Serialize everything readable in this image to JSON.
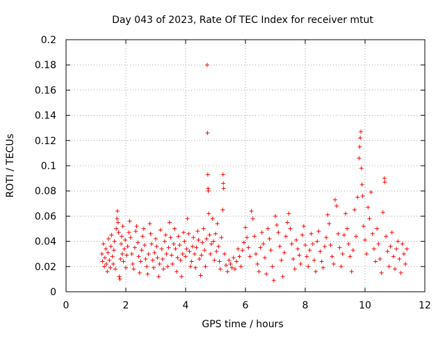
{
  "chart_data": {
    "type": "scatter",
    "title": "Day 043 of 2023, Rate Of TEC Index for receiver mtut",
    "xlabel": "GPS time / hours",
    "ylabel": "ROTI / TECUs",
    "xlim": [
      0,
      12
    ],
    "ylim": [
      0,
      0.2
    ],
    "x_ticks": [
      "0",
      "2",
      "4",
      "6",
      "8",
      "10",
      "12"
    ],
    "y_ticks": [
      "0",
      "0.02",
      "0.04",
      "0.06",
      "0.08",
      "0.1",
      "0.12",
      "0.14",
      "0.16",
      "0.18",
      "0.2"
    ],
    "grid": true,
    "marker": "+",
    "color": "#ff0000",
    "series": [
      {
        "points": [
          [
            1.2,
            0.03
          ],
          [
            1.22,
            0.024
          ],
          [
            1.25,
            0.038
          ],
          [
            1.28,
            0.02
          ],
          [
            1.3,
            0.027
          ],
          [
            1.33,
            0.034
          ],
          [
            1.35,
            0.022
          ],
          [
            1.38,
            0.016
          ],
          [
            1.4,
            0.031
          ],
          [
            1.42,
            0.042
          ],
          [
            1.45,
            0.025
          ],
          [
            1.48,
            0.019
          ],
          [
            1.5,
            0.036
          ],
          [
            1.52,
            0.045
          ],
          [
            1.55,
            0.028
          ],
          [
            1.58,
            0.022
          ],
          [
            1.6,
            0.033
          ],
          [
            1.62,
            0.04
          ],
          [
            1.65,
            0.018
          ],
          [
            1.68,
            0.05
          ],
          [
            1.7,
            0.058
          ],
          [
            1.72,
            0.064
          ],
          [
            1.74,
            0.055
          ],
          [
            1.76,
            0.047
          ],
          [
            1.78,
            0.012
          ],
          [
            1.8,
            0.01
          ],
          [
            1.82,
            0.026
          ],
          [
            1.84,
            0.038
          ],
          [
            1.86,
            0.044
          ],
          [
            1.88,
            0.03
          ],
          [
            1.9,
            0.052
          ],
          [
            1.92,
            0.024
          ],
          [
            1.95,
            0.034
          ],
          [
            1.98,
            0.041
          ],
          [
            2.0,
            0.019
          ],
          [
            2.03,
            0.029
          ],
          [
            2.06,
            0.036
          ],
          [
            2.1,
            0.047
          ],
          [
            2.13,
            0.056
          ],
          [
            2.16,
            0.043
          ],
          [
            2.2,
            0.03
          ],
          [
            2.23,
            0.022
          ],
          [
            2.26,
            0.018
          ],
          [
            2.3,
            0.035
          ],
          [
            2.33,
            0.048
          ],
          [
            2.36,
            0.052
          ],
          [
            2.4,
            0.039
          ],
          [
            2.43,
            0.028
          ],
          [
            2.46,
            0.015
          ],
          [
            2.5,
            0.024
          ],
          [
            2.53,
            0.033
          ],
          [
            2.56,
            0.044
          ],
          [
            2.6,
            0.05
          ],
          [
            2.63,
            0.037
          ],
          [
            2.66,
            0.026
          ],
          [
            2.7,
            0.02
          ],
          [
            2.73,
            0.014
          ],
          [
            2.76,
            0.03
          ],
          [
            2.8,
            0.054
          ],
          [
            2.83,
            0.046
          ],
          [
            2.86,
            0.038
          ],
          [
            2.9,
            0.025
          ],
          [
            2.93,
            0.019
          ],
          [
            2.96,
            0.031
          ],
          [
            3.0,
            0.042
          ],
          [
            3.03,
            0.036
          ],
          [
            3.06,
            0.027
          ],
          [
            3.1,
            0.012
          ],
          [
            3.13,
            0.022
          ],
          [
            3.16,
            0.049
          ],
          [
            3.2,
            0.034
          ],
          [
            3.23,
            0.026
          ],
          [
            3.26,
            0.018
          ],
          [
            3.3,
            0.04
          ],
          [
            3.33,
            0.045
          ],
          [
            3.36,
            0.03
          ],
          [
            3.4,
            0.02
          ],
          [
            3.43,
            0.035
          ],
          [
            3.46,
            0.055
          ],
          [
            3.5,
            0.043
          ],
          [
            3.53,
            0.029
          ],
          [
            3.56,
            0.022
          ],
          [
            3.6,
            0.038
          ],
          [
            3.63,
            0.05
          ],
          [
            3.66,
            0.034
          ],
          [
            3.7,
            0.016
          ],
          [
            3.73,
            0.027
          ],
          [
            3.76,
            0.044
          ],
          [
            3.8,
            0.037
          ],
          [
            3.83,
            0.025
          ],
          [
            3.86,
            0.012
          ],
          [
            3.9,
            0.03
          ],
          [
            3.93,
            0.047
          ],
          [
            3.96,
            0.04
          ],
          [
            4.0,
            0.028
          ],
          [
            4.03,
            0.034
          ],
          [
            4.06,
            0.058
          ],
          [
            4.1,
            0.046
          ],
          [
            4.13,
            0.032
          ],
          [
            4.16,
            0.02
          ],
          [
            4.2,
            0.024
          ],
          [
            4.23,
            0.036
          ],
          [
            4.26,
            0.043
          ],
          [
            4.3,
            0.03
          ],
          [
            4.33,
            0.019
          ],
          [
            4.36,
            0.035
          ],
          [
            4.4,
            0.048
          ],
          [
            4.43,
            0.041
          ],
          [
            4.46,
            0.026
          ],
          [
            4.5,
            0.013
          ],
          [
            4.53,
            0.029
          ],
          [
            4.56,
            0.039
          ],
          [
            4.6,
            0.05
          ],
          [
            4.63,
            0.033
          ],
          [
            4.66,
            0.02
          ],
          [
            4.7,
            0.042
          ],
          [
            4.72,
            0.18
          ],
          [
            4.73,
            0.126
          ],
          [
            4.74,
            0.093
          ],
          [
            4.75,
            0.082
          ],
          [
            4.76,
            0.08
          ],
          [
            4.77,
            0.062
          ],
          [
            4.8,
            0.045
          ],
          [
            4.83,
            0.03
          ],
          [
            4.86,
            0.038
          ],
          [
            4.9,
            0.058
          ],
          [
            4.93,
            0.04
          ],
          [
            4.96,
            0.025
          ],
          [
            5.0,
            0.046
          ],
          [
            5.03,
            0.032
          ],
          [
            5.06,
            0.054
          ],
          [
            5.1,
            0.036
          ],
          [
            5.13,
            0.024
          ],
          [
            5.16,
            0.018
          ],
          [
            5.2,
            0.043
          ],
          [
            5.24,
            0.065
          ],
          [
            5.25,
            0.093
          ],
          [
            5.26,
            0.086
          ],
          [
            5.27,
            0.082
          ],
          [
            5.3,
            0.03
          ],
          [
            5.35,
            0.021
          ],
          [
            5.4,
            0.016
          ],
          [
            5.45,
            0.025
          ],
          [
            5.5,
            0.022
          ],
          [
            5.55,
            0.019
          ],
          [
            5.6,
            0.027
          ],
          [
            5.65,
            0.018
          ],
          [
            5.7,
            0.024
          ],
          [
            5.75,
            0.034
          ],
          [
            5.8,
            0.028
          ],
          [
            5.85,
            0.02
          ],
          [
            5.9,
            0.033
          ],
          [
            5.95,
            0.039
          ],
          [
            6.0,
            0.051
          ],
          [
            6.05,
            0.043
          ],
          [
            6.1,
            0.035
          ],
          [
            6.15,
            0.028
          ],
          [
            6.2,
            0.064
          ],
          [
            6.25,
            0.058
          ],
          [
            6.3,
            0.044
          ],
          [
            6.35,
            0.03
          ],
          [
            6.4,
            0.022
          ],
          [
            6.45,
            0.016
          ],
          [
            6.5,
            0.035
          ],
          [
            6.55,
            0.047
          ],
          [
            6.6,
            0.038
          ],
          [
            6.65,
            0.027
          ],
          [
            6.7,
            0.014
          ],
          [
            6.75,
            0.05
          ],
          [
            6.8,
            0.042
          ],
          [
            6.85,
            0.033
          ],
          [
            6.9,
            0.02
          ],
          [
            6.95,
            0.009
          ],
          [
            7.0,
            0.06
          ],
          [
            7.05,
            0.053
          ],
          [
            7.1,
            0.047
          ],
          [
            7.15,
            0.036
          ],
          [
            7.2,
            0.025
          ],
          [
            7.25,
            0.012
          ],
          [
            7.3,
            0.031
          ],
          [
            7.35,
            0.044
          ],
          [
            7.4,
            0.055
          ],
          [
            7.45,
            0.062
          ],
          [
            7.5,
            0.05
          ],
          [
            7.55,
            0.038
          ],
          [
            7.6,
            0.026
          ],
          [
            7.65,
            0.018
          ],
          [
            7.7,
            0.041
          ],
          [
            7.75,
            0.034
          ],
          [
            7.8,
            0.029
          ],
          [
            7.85,
            0.022
          ],
          [
            7.9,
            0.045
          ],
          [
            7.95,
            0.052
          ],
          [
            8.0,
            0.037
          ],
          [
            8.05,
            0.028
          ],
          [
            8.1,
            0.02
          ],
          [
            8.15,
            0.033
          ],
          [
            8.2,
            0.046
          ],
          [
            8.25,
            0.038
          ],
          [
            8.3,
            0.025
          ],
          [
            8.35,
            0.016
          ],
          [
            8.4,
            0.04
          ],
          [
            8.45,
            0.048
          ],
          [
            8.5,
            0.032
          ],
          [
            8.55,
            0.024
          ],
          [
            8.6,
            0.019
          ],
          [
            8.65,
            0.036
          ],
          [
            8.7,
            0.043
          ],
          [
            8.75,
            0.061
          ],
          [
            8.8,
            0.054
          ],
          [
            8.85,
            0.037
          ],
          [
            8.9,
            0.028
          ],
          [
            8.95,
            0.022
          ],
          [
            9.0,
            0.073
          ],
          [
            9.05,
            0.068
          ],
          [
            9.1,
            0.046
          ],
          [
            9.15,
            0.035
          ],
          [
            9.2,
            0.02
          ],
          [
            9.25,
            0.03
          ],
          [
            9.3,
            0.045
          ],
          [
            9.35,
            0.062
          ],
          [
            9.4,
            0.05
          ],
          [
            9.45,
            0.038
          ],
          [
            9.5,
            0.028
          ],
          [
            9.55,
            0.016
          ],
          [
            9.6,
            0.033
          ],
          [
            9.65,
            0.065
          ],
          [
            9.7,
            0.044
          ],
          [
            9.75,
            0.075
          ],
          [
            9.8,
            0.106
          ],
          [
            9.82,
            0.115
          ],
          [
            9.84,
            0.122
          ],
          [
            9.86,
            0.127
          ],
          [
            9.88,
            0.098
          ],
          [
            9.9,
            0.085
          ],
          [
            9.92,
            0.076
          ],
          [
            9.95,
            0.052
          ],
          [
            10.0,
            0.041
          ],
          [
            10.05,
            0.03
          ],
          [
            10.1,
            0.067
          ],
          [
            10.15,
            0.058
          ],
          [
            10.2,
            0.079
          ],
          [
            10.25,
            0.046
          ],
          [
            10.3,
            0.034
          ],
          [
            10.35,
            0.024
          ],
          [
            10.4,
            0.05
          ],
          [
            10.45,
            0.038
          ],
          [
            10.5,
            0.026
          ],
          [
            10.55,
            0.015
          ],
          [
            10.6,
            0.063
          ],
          [
            10.65,
            0.09
          ],
          [
            10.66,
            0.087
          ],
          [
            10.7,
            0.044
          ],
          [
            10.75,
            0.032
          ],
          [
            10.8,
            0.02
          ],
          [
            10.85,
            0.036
          ],
          [
            10.9,
            0.047
          ],
          [
            10.95,
            0.028
          ],
          [
            11.0,
            0.018
          ],
          [
            11.05,
            0.034
          ],
          [
            11.1,
            0.04
          ],
          [
            11.15,
            0.026
          ],
          [
            11.2,
            0.015
          ],
          [
            11.25,
            0.038
          ],
          [
            11.3,
            0.03
          ],
          [
            11.35,
            0.022
          ],
          [
            11.4,
            0.034
          ]
        ]
      }
    ]
  }
}
